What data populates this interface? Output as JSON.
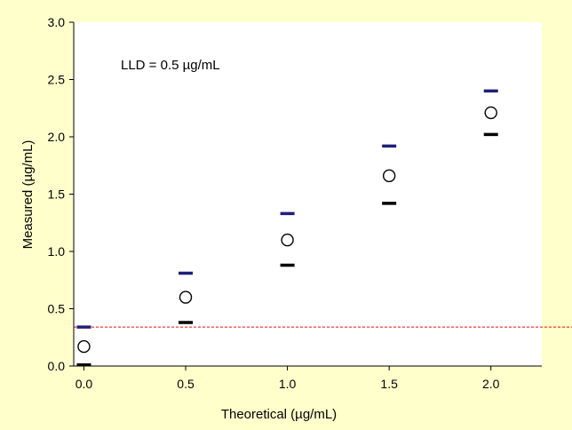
{
  "chart_data": {
    "type": "scatter",
    "title": "",
    "xlabel": "Theoretical (µg/mL)",
    "ylabel": "Measured (µg/mL)",
    "xlim": [
      -0.05,
      2.25
    ],
    "ylim": [
      0,
      3.0
    ],
    "xticks": [
      0.0,
      0.5,
      1.0,
      1.5,
      2.0
    ],
    "xtick_labels": [
      "0.0",
      "0.5",
      "1.0",
      "1.5",
      "2.0"
    ],
    "yticks": [
      0.0,
      0.5,
      1.0,
      1.5,
      2.0,
      2.5,
      3.0
    ],
    "ytick_labels": [
      "0.0",
      "0.5",
      "1.0",
      "1.5",
      "2.0",
      "2.5",
      "3.0"
    ],
    "grid": false,
    "annotation": "LLD = 0.5 µg/mL",
    "series": [
      {
        "marker": "open-circle",
        "color": "#000000",
        "x": [
          0.0,
          0.5,
          1.0,
          1.5,
          2.0
        ],
        "y": [
          0.17,
          0.6,
          1.1,
          1.66,
          2.21
        ]
      },
      {
        "marker": "dash",
        "color": "#1F1F7A",
        "x": [
          0.0,
          0.5,
          1.0,
          1.5,
          2.0
        ],
        "y": [
          0.34,
          0.81,
          1.33,
          1.92,
          2.4
        ]
      },
      {
        "marker": "dash",
        "color": "#000000",
        "x": [
          0.0,
          0.5,
          1.0,
          1.5,
          2.0
        ],
        "y": [
          0.01,
          0.38,
          0.88,
          1.42,
          2.02
        ]
      }
    ],
    "reference_line": {
      "y": 0.34,
      "style": "dashed",
      "color": "#FF0000"
    }
  }
}
